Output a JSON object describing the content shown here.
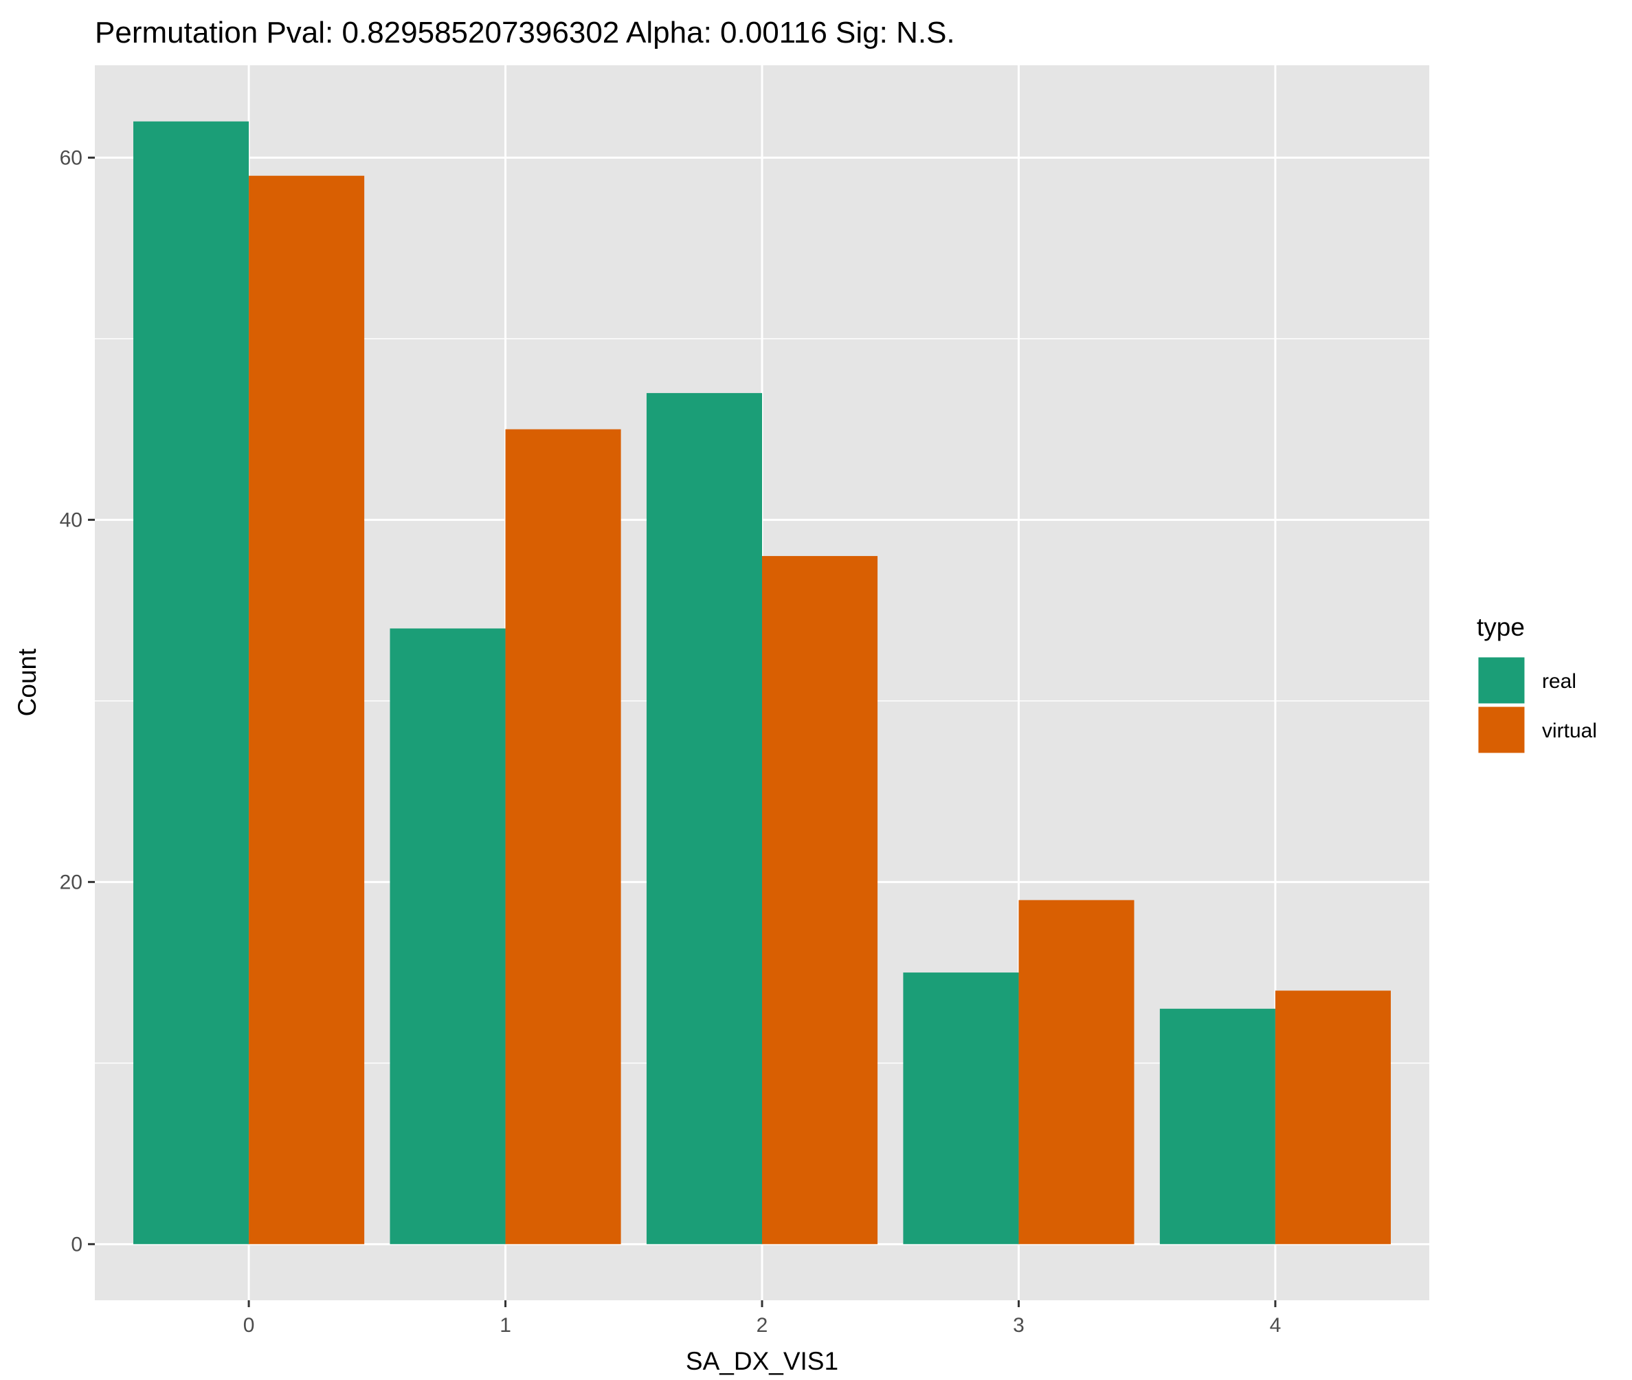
{
  "chart_data": {
    "type": "bar",
    "title": "Permutation Pval: 0.829585207396302 Alpha: 0.00116 Sig: N.S.",
    "xlabel": "SA_DX_VIS1",
    "ylabel": "Count",
    "categories": [
      "0",
      "1",
      "2",
      "3",
      "4"
    ],
    "series": [
      {
        "name": "real",
        "color": "#1B9E77",
        "values": [
          62,
          34,
          47,
          15,
          13
        ]
      },
      {
        "name": "virtual",
        "color": "#D95F02",
        "values": [
          59,
          45,
          38,
          19,
          14
        ]
      }
    ],
    "ylim": [
      -3.1,
      65.1
    ],
    "yticks": [
      0,
      20,
      40,
      60
    ],
    "grid": true,
    "panel_background": "#E5E5E5",
    "legend": {
      "title": "type",
      "placement": "right"
    }
  }
}
